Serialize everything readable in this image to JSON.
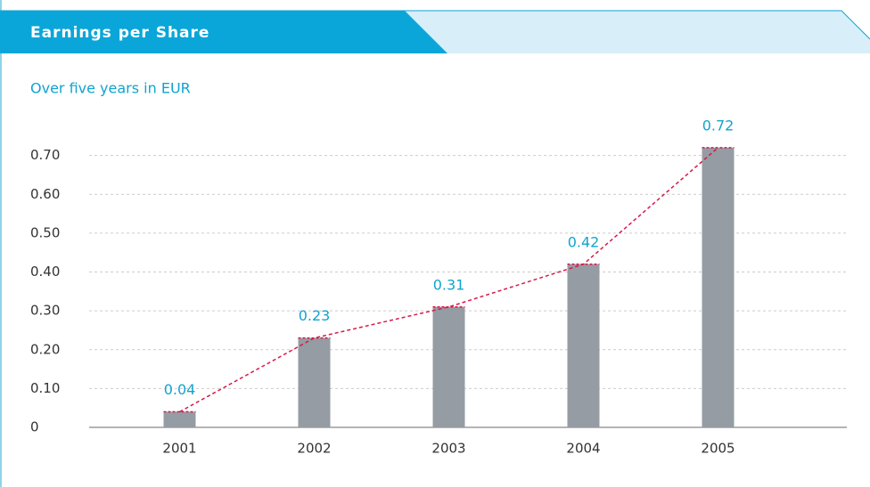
{
  "chart_data": {
    "type": "bar",
    "title": "Earnings per Share",
    "subtitle": "Over five years in EUR",
    "categories": [
      "2001",
      "2002",
      "2003",
      "2004",
      "2005"
    ],
    "values": [
      0.04,
      0.23,
      0.31,
      0.42,
      0.72
    ],
    "color": "#959ca3",
    "line_color": "#d6194a",
    "label_color": "#12a3d0",
    "ylim": [
      0,
      0.8
    ],
    "yticks": [
      0,
      {
        "value": 0.1,
        "label": "0.10"
      },
      {
        "value": 0.2,
        "label": "0.20"
      },
      {
        "value": 0.3,
        "label": "0.30"
      },
      {
        "value": 0.4,
        "label": "0.40"
      },
      {
        "value": 0.5,
        "label": "0.50"
      },
      {
        "value": 0.6,
        "label": "0.60"
      },
      {
        "value": 0.7,
        "label": "0.70"
      }
    ],
    "grid": true
  }
}
